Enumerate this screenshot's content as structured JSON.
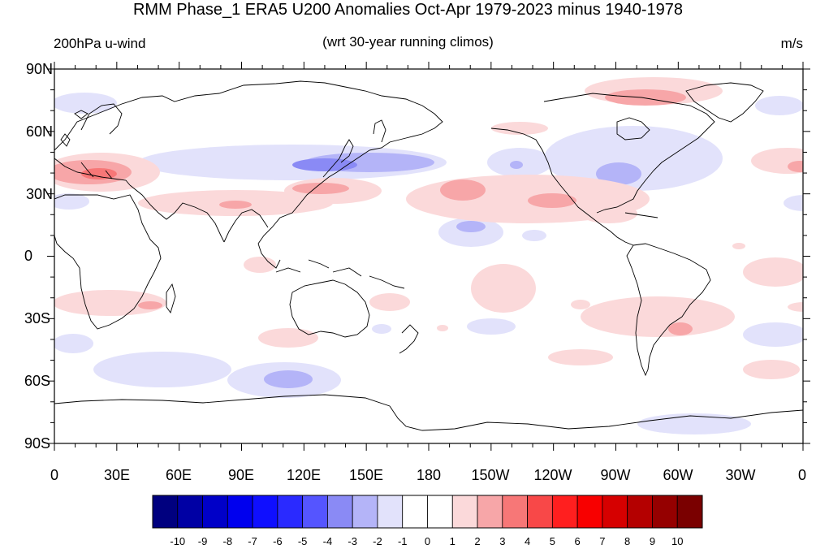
{
  "title": "RMM Phase_1 ERA5 U200 Anomalies Oct-Apr 1979-2023 minus 1940-1978",
  "left_subtitle": "200hPa u-wind",
  "center_subtitle": "(wrt 30-year running climos)",
  "right_subtitle": "m/s",
  "y_axis": {
    "ticks": [
      "90N",
      "60N",
      "30N",
      "0",
      "30S",
      "60S",
      "90S"
    ]
  },
  "x_axis": {
    "ticks": [
      "0",
      "30E",
      "60E",
      "90E",
      "120E",
      "150E",
      "180",
      "150W",
      "120W",
      "90W",
      "60W",
      "30W",
      "0"
    ]
  },
  "colorbar": {
    "labels": [
      "-10",
      "-9",
      "-8",
      "-7",
      "-6",
      "-5",
      "-4",
      "-3",
      "-2",
      "-1",
      "0",
      "1",
      "2",
      "3",
      "4",
      "5",
      "6",
      "7",
      "8",
      "9",
      "10"
    ],
    "colors": [
      "#00007f",
      "#0000a4",
      "#0000c8",
      "#0000ee",
      "#0f0fff",
      "#2a2aff",
      "#5555ff",
      "#8a8af5",
      "#b4b4f8",
      "#e2e2fb",
      "#ffffff",
      "#ffffff",
      "#fbd9da",
      "#f7a6a8",
      "#f77777",
      "#f84848",
      "#ff1f1f",
      "#f80000",
      "#d60000",
      "#b40000",
      "#950000",
      "#7a0000"
    ]
  },
  "colors": {
    "positive_light": "#fbd9da",
    "positive_mid": "#f7a6a8",
    "negative_light": "#e2e2fb",
    "negative_mid": "#b4b4f8",
    "negative_strong": "#8a8af5",
    "coastline": "#000000"
  }
}
